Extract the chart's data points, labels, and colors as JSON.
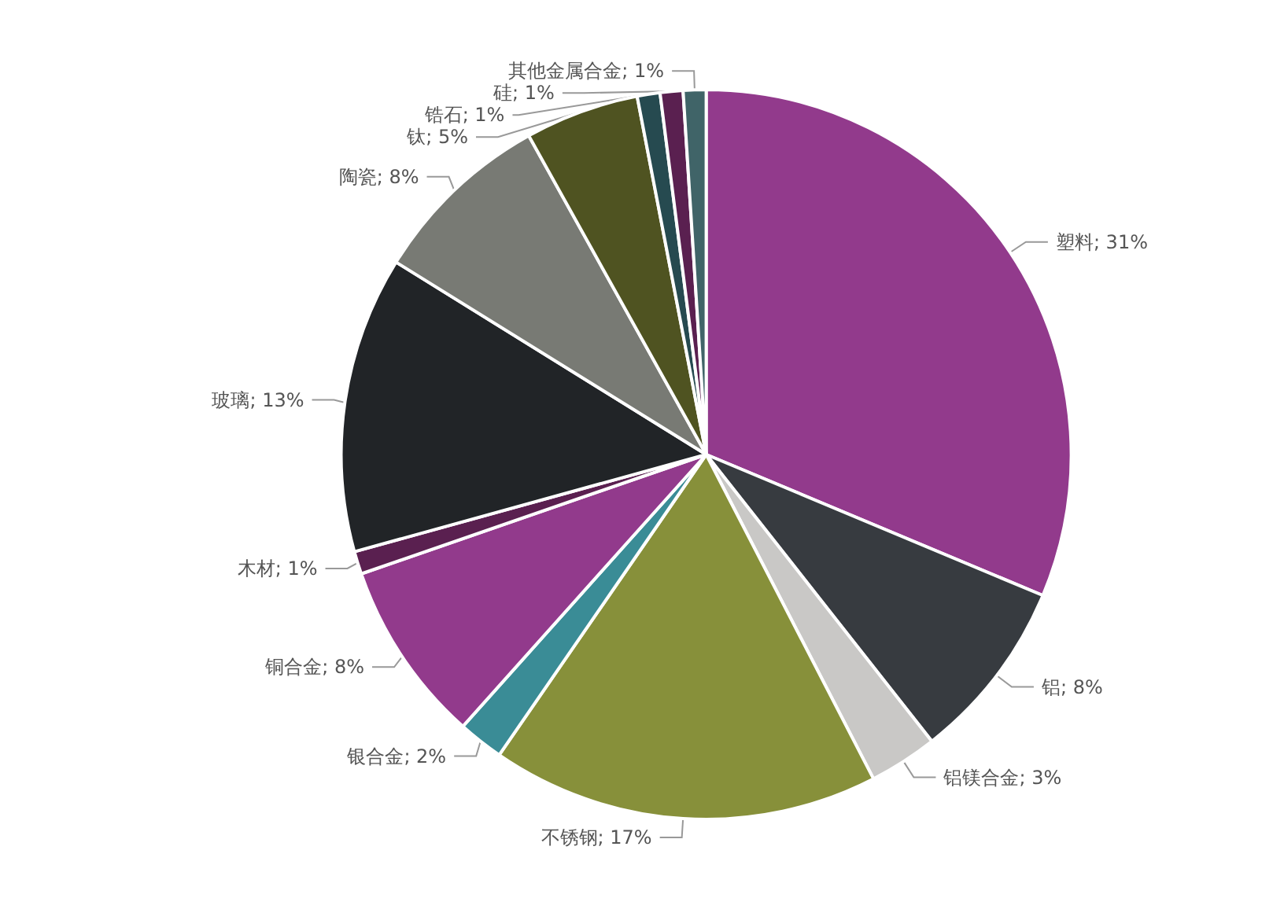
{
  "chart_data": {
    "type": "pie",
    "categories": [
      "塑料",
      "铝",
      "铝镁合金",
      "不锈钢",
      "银合金",
      "铜合金",
      "木材",
      "玻璃",
      "陶瓷",
      "钛",
      "锆石",
      "硅",
      "其他金属合金"
    ],
    "values": [
      31,
      8,
      3,
      17,
      2,
      8,
      1,
      13,
      8,
      5,
      1,
      1,
      1
    ],
    "value_labels": [
      "31%",
      "8%",
      "3%",
      "17%",
      "2%",
      "8%",
      "1%",
      "13%",
      "8%",
      "5%",
      "1%",
      "1%",
      "1%"
    ],
    "colors": [
      "#923a8c",
      "#373b40",
      "#c9c8c6",
      "#87903a",
      "#3a8c96",
      "#923a8c",
      "#5a2050",
      "#212427",
      "#787a74",
      "#4f5321",
      "#264a50",
      "#5a2050",
      "#406468"
    ],
    "legend": false
  }
}
